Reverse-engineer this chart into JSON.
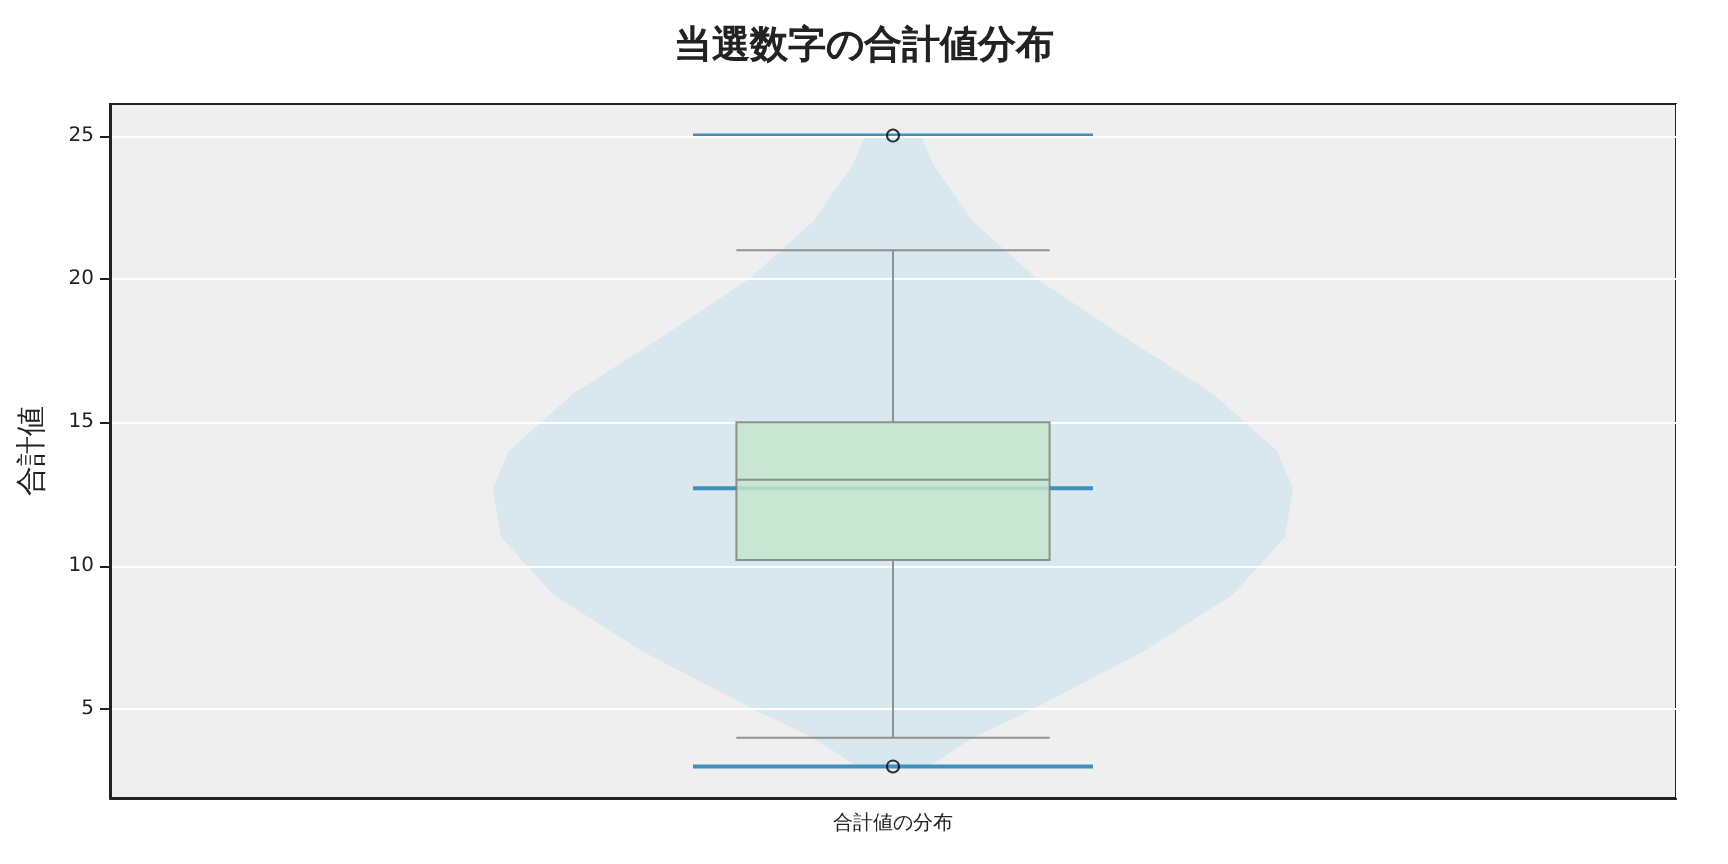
{
  "chart_data": {
    "type": "box",
    "title": "当選数字の合計値分布",
    "ylabel": "合計値",
    "categories": [
      "合計値の分布"
    ],
    "boxes": [
      {
        "low": 4,
        "q1": 10.2,
        "median": 13,
        "q3": 15,
        "high": 21,
        "outliers": [
          3,
          25
        ]
      }
    ],
    "color": "#c3e6cc",
    "ylim": [
      1.9,
      26.1
    ],
    "yticks": [
      5,
      10,
      15,
      20,
      25
    ],
    "grid": true
  }
}
